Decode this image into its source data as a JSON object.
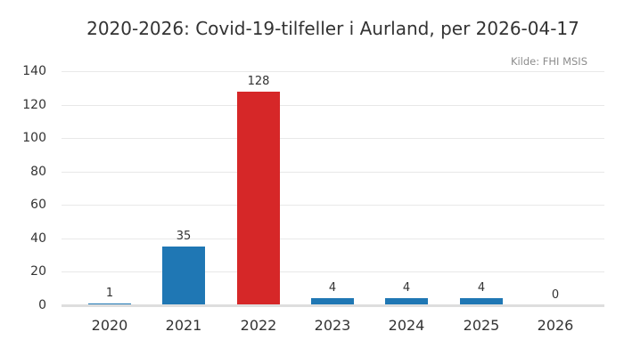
{
  "title": "2020-2026: Covid-19-tilfeller i Aurland, per 2026-04-17",
  "source": "Kilde: FHI MSIS",
  "chart_data": {
    "type": "bar",
    "title": "2020-2026: Covid-19-tilfeller i Aurland, per 2026-04-17",
    "subtitle": "",
    "source_annotation": "Kilde: FHI MSIS",
    "categories": [
      "2020",
      "2021",
      "2022",
      "2023",
      "2024",
      "2025",
      "2026"
    ],
    "values": [
      1,
      35,
      128,
      4,
      4,
      4,
      0
    ],
    "value_labels": [
      "1",
      "35",
      "128",
      "4",
      "4",
      "4",
      "0"
    ],
    "xlabel": "",
    "ylabel": "",
    "ylim": [
      0,
      140
    ],
    "yticks": [
      0,
      20,
      40,
      60,
      80,
      100,
      120,
      140
    ],
    "grid": "horizontal-only",
    "legend": "none",
    "colors": {
      "bar_default": "#1f77b4",
      "bar_highlight": "#d62728",
      "highlight_category": "2022",
      "grid": "#e8e8e8",
      "axis_line": "#dedede",
      "text": "#333333",
      "source_text": "#8c8c8c",
      "background": "#ffffff"
    },
    "bar_colors": [
      "#1f77b4",
      "#1f77b4",
      "#d62728",
      "#1f77b4",
      "#1f77b4",
      "#1f77b4",
      "#1f77b4"
    ]
  }
}
